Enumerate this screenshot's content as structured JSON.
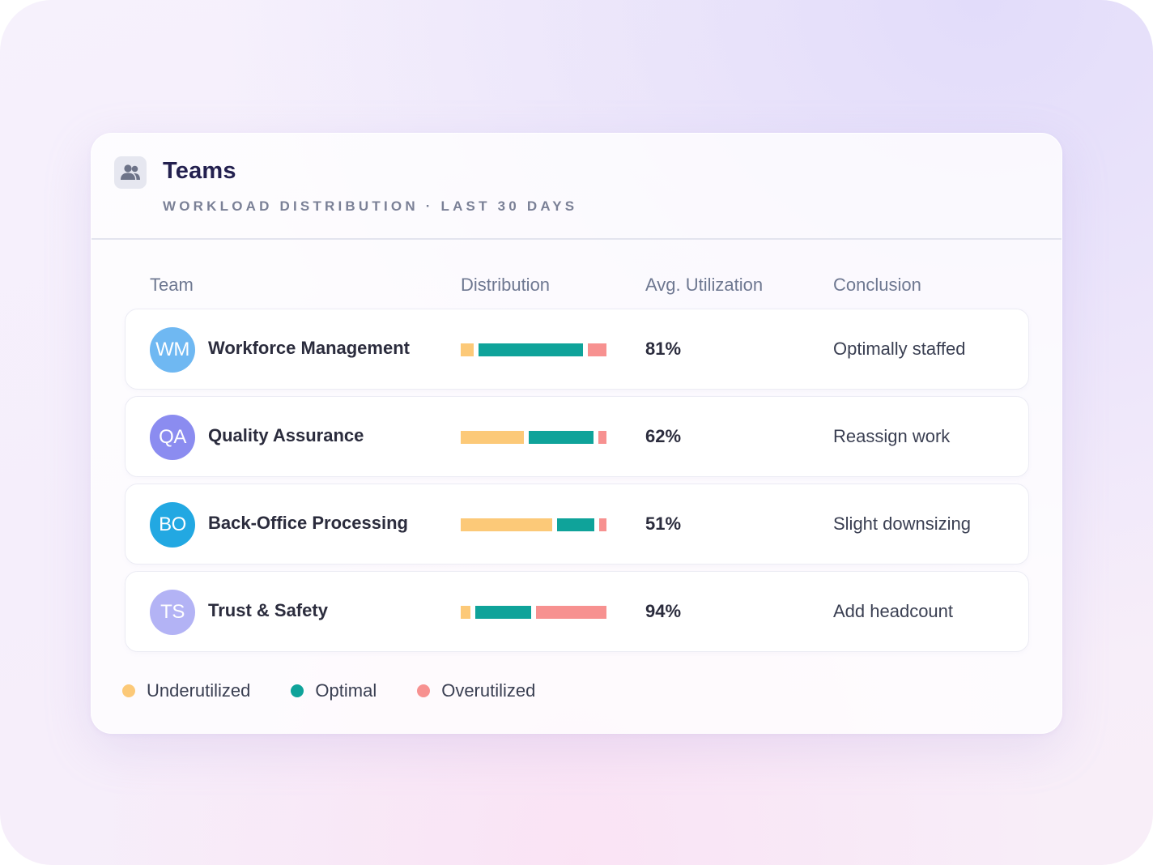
{
  "header": {
    "title": "Teams",
    "subtitle": "WORKLOAD DISTRIBUTION · LAST 30 DAYS",
    "icon": "users-icon"
  },
  "columns": {
    "team": "Team",
    "distribution": "Distribution",
    "utilization": "Avg. Utilization",
    "conclusion": "Conclusion"
  },
  "colors": {
    "underutilized": "#fcc978",
    "optimal": "#0fa39a",
    "overutilized": "#f79190"
  },
  "teams": [
    {
      "initials": "WM",
      "name": "Workforce Management",
      "avatar_color": "#6fb8f2",
      "distribution": {
        "underutilized": 0.09,
        "optimal": 0.75,
        "overutilized": 0.13
      },
      "utilization": "81%",
      "conclusion": "Optimally staffed"
    },
    {
      "initials": "QA",
      "name": "Quality Assurance",
      "avatar_color": "#8b8cf0",
      "distribution": {
        "underutilized": 0.45,
        "optimal": 0.46,
        "overutilized": 0.06
      },
      "utilization": "62%",
      "conclusion": "Reassign work"
    },
    {
      "initials": "BO",
      "name": "Back-Office Processing",
      "avatar_color": "#22a8e2",
      "distribution": {
        "underutilized": 0.66,
        "optimal": 0.27,
        "overutilized": 0.05
      },
      "utilization": "51%",
      "conclusion": "Slight downsizing"
    },
    {
      "initials": "TS",
      "name": "Trust & Safety",
      "avatar_color": "#b3b3f5",
      "distribution": {
        "underutilized": 0.07,
        "optimal": 0.4,
        "overutilized": 0.51
      },
      "utilization": "94%",
      "conclusion": "Add headcount"
    }
  ],
  "legend": {
    "underutilized": "Underutilized",
    "optimal": "Optimal",
    "overutilized": "Overutilized"
  }
}
